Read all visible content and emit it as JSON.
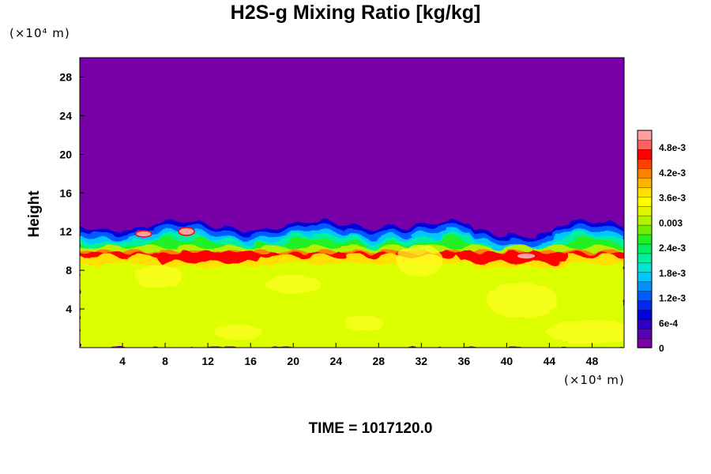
{
  "chart_data": {
    "type": "heatmap",
    "title": "H2S-g Mixing Ratio [kg/kg]",
    "ylabel": "Height",
    "xlabel": "",
    "x_unit": "(×10⁴ m)",
    "y_unit": "(×10⁴ m)",
    "x_ticks": [
      "4",
      "8",
      "12",
      "16",
      "20",
      "24",
      "28",
      "32",
      "36",
      "40",
      "44",
      "48"
    ],
    "y_ticks": [
      "4",
      "8",
      "12",
      "16",
      "20",
      "24",
      "28"
    ],
    "xlim": [
      0,
      51
    ],
    "ylim": [
      0,
      30
    ],
    "colorbar": {
      "labels": [
        "0",
        "6e-4",
        "1.2e-3",
        "1.8e-3",
        "2.4e-3",
        "0.003",
        "3.6e-3",
        "4.2e-3",
        "4.8e-3"
      ],
      "range": [
        0,
        0.0052
      ],
      "colors": [
        "#7b00a8",
        "#5a00b4",
        "#2d00c8",
        "#0000dc",
        "#0028f0",
        "#005aff",
        "#0090ff",
        "#00c8ff",
        "#00e6d2",
        "#00f0a0",
        "#00f060",
        "#20f020",
        "#70f000",
        "#b4f000",
        "#e0f500",
        "#ffff00",
        "#ffe000",
        "#ffb400",
        "#ff8000",
        "#ff4000",
        "#ff0000",
        "#ff6060",
        "#ffa0a0"
      ]
    },
    "field_colors": {
      "background": "#7800a8",
      "lower_layer": "#dcff00",
      "bright_patch": "#ffff20"
    }
  },
  "footer": {
    "time_text": "TIME = 1017120.0"
  }
}
